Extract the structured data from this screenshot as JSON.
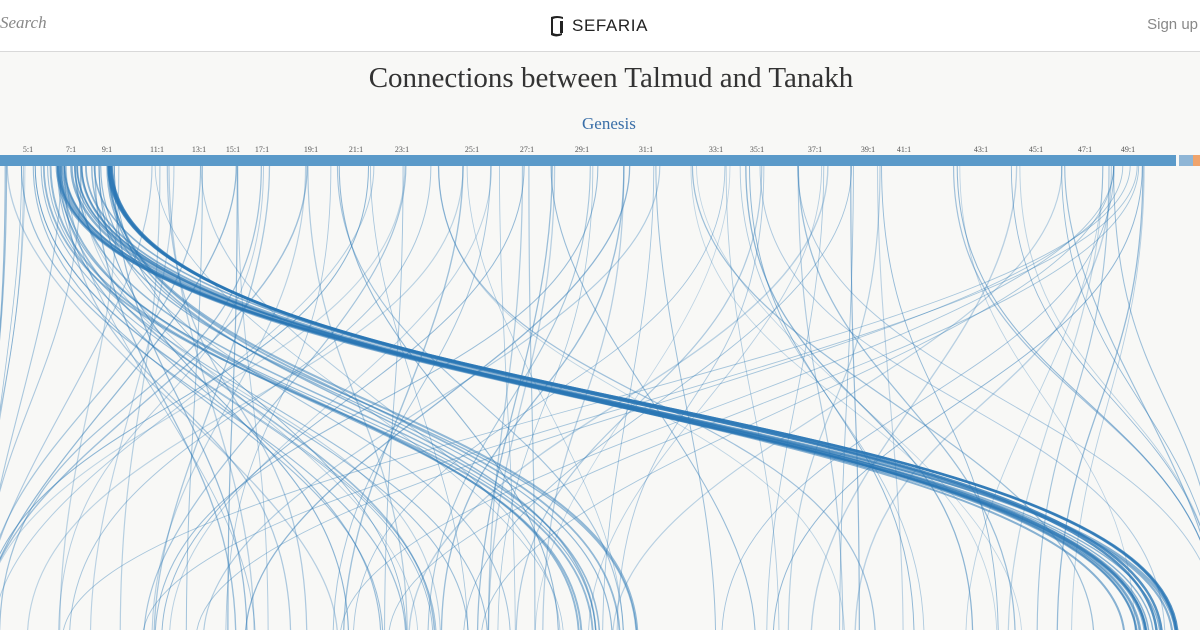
{
  "header": {
    "search_label": "Search",
    "logo_text": "SEFARIA",
    "signup_label": "Sign up"
  },
  "page": {
    "title": "Connections between Talmud and Tanakh",
    "book_label": "Genesis",
    "prev_arrow": "›"
  },
  "colors": {
    "arc": "#2a77b5",
    "book_bar": "#5b9ac9",
    "next_book": "#8fb6d6",
    "accent_orange": "#f0a46c",
    "title_link": "#3a6fa8"
  },
  "chapter_ticks": [
    "5:1",
    "7:1",
    "9:1",
    "11:1",
    "13:1",
    "15:1",
    "17:1",
    "19:1",
    "21:1",
    "23:1",
    "25:1",
    "27:1",
    "29:1",
    "31:1",
    "33:1",
    "35:1",
    "37:1",
    "39:1",
    "41:1",
    "43:1",
    "45:1",
    "47:1",
    "49:1"
  ],
  "icons": {
    "logo": "sefaria-logo-icon"
  }
}
